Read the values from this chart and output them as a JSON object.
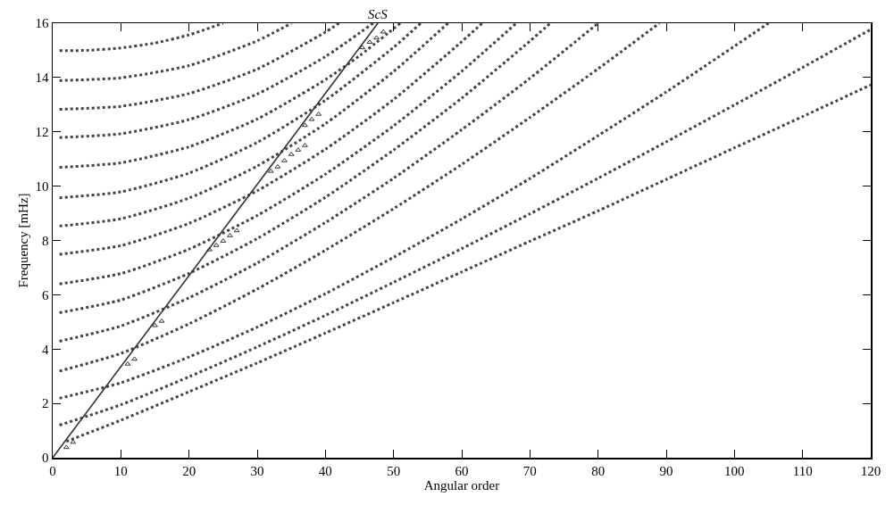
{
  "chart_data": {
    "type": "line",
    "xlabel": "Angular order",
    "ylabel": "Frequency [mHz]",
    "xlim": [
      0,
      120
    ],
    "ylim": [
      0,
      16
    ],
    "xticks": [
      0,
      10,
      20,
      30,
      40,
      50,
      60,
      70,
      80,
      90,
      100,
      110,
      120
    ],
    "yticks": [
      0,
      2,
      4,
      6,
      8,
      10,
      12,
      14,
      16
    ],
    "grid": false,
    "marker": "none",
    "line_style": "dotted",
    "annotations": [
      {
        "text": "ScS",
        "x": 47.7,
        "y": 16
      }
    ],
    "series": [
      {
        "color": "#444444",
        "x": [
          2,
          10,
          20,
          30,
          40,
          50,
          60,
          70,
          80,
          90,
          100,
          110,
          120
        ],
        "values": [
          0.6,
          1.38,
          2.43,
          3.49,
          4.59,
          5.71,
          6.84,
          7.97,
          9.09,
          10.25,
          11.41,
          12.56,
          13.73
        ]
      },
      {
        "color": "#444444",
        "x": [
          1,
          10,
          20,
          30,
          40,
          50,
          60,
          70,
          80,
          90,
          100,
          110,
          120
        ],
        "values": [
          1.2,
          1.95,
          2.98,
          4.08,
          5.24,
          6.46,
          7.7,
          8.98,
          10.29,
          11.63,
          12.99,
          14.37,
          15.77
        ]
      },
      {
        "color": "#444444",
        "x": [
          1,
          10,
          20,
          30,
          40,
          50,
          60,
          70,
          80,
          90,
          105
        ],
        "values": [
          2.19,
          2.76,
          3.71,
          4.81,
          6.04,
          7.38,
          8.79,
          10.28,
          11.86,
          13.47,
          16
        ]
      },
      {
        "color": "#444444",
        "x": [
          1,
          10,
          20,
          30,
          40,
          50,
          60,
          70,
          80,
          89
        ],
        "values": [
          3.19,
          3.84,
          4.93,
          6.21,
          7.64,
          9.17,
          10.8,
          12.53,
          14.32,
          16
        ]
      },
      {
        "color": "#444444",
        "x": [
          1,
          10,
          20,
          30,
          40,
          50,
          60,
          70,
          80
        ],
        "values": [
          4.29,
          4.85,
          5.89,
          7.17,
          8.66,
          10.29,
          12.08,
          13.97,
          16
        ]
      },
      {
        "color": "#444444",
        "x": [
          1,
          10,
          20,
          30,
          40,
          50,
          60,
          70,
          73
        ],
        "values": [
          5.34,
          5.81,
          6.79,
          8.07,
          9.59,
          11.33,
          13.24,
          15.34,
          16
        ]
      },
      {
        "color": "#444444",
        "x": [
          1,
          10,
          20,
          30,
          40,
          50,
          60,
          68
        ],
        "values": [
          6.4,
          6.78,
          7.68,
          8.92,
          10.44,
          12.22,
          14.23,
          16
        ]
      },
      {
        "color": "#444444",
        "x": [
          1,
          10,
          20,
          30,
          40,
          50,
          60,
          63
        ],
        "values": [
          7.49,
          7.81,
          8.63,
          9.83,
          11.36,
          13.19,
          15.32,
          16
        ]
      },
      {
        "color": "#444444",
        "x": [
          1,
          10,
          20,
          30,
          40,
          50,
          58
        ],
        "values": [
          8.53,
          8.8,
          9.56,
          10.74,
          12.3,
          14.22,
          16
        ]
      },
      {
        "color": "#444444",
        "x": [
          1,
          10,
          20,
          30,
          40,
          50,
          54
        ],
        "values": [
          9.57,
          9.79,
          10.48,
          11.61,
          13.16,
          15.11,
          16
        ]
      },
      {
        "color": "#444444",
        "x": [
          1,
          10,
          20,
          30,
          40,
          45,
          51
        ],
        "values": [
          10.69,
          10.86,
          11.45,
          12.47,
          13.92,
          14.8,
          16
        ]
      },
      {
        "color": "#444444",
        "x": [
          1,
          10,
          20,
          30,
          40,
          47
        ],
        "values": [
          11.79,
          11.93,
          12.45,
          13.39,
          14.77,
          16
        ]
      },
      {
        "color": "#444444",
        "x": [
          1,
          10,
          20,
          30,
          40,
          42
        ],
        "values": [
          12.83,
          12.94,
          13.41,
          14.31,
          15.67,
          16
        ]
      },
      {
        "color": "#444444",
        "x": [
          1,
          10,
          20,
          30,
          35
        ],
        "values": [
          13.89,
          13.99,
          14.44,
          15.35,
          16
        ]
      },
      {
        "color": "#444444",
        "x": [
          1,
          5,
          10,
          15,
          20,
          25
        ],
        "values": [
          14.99,
          15.0,
          15.09,
          15.27,
          15.57,
          16
        ]
      },
      {
        "type": "line",
        "line_style": "solid",
        "color": "#333333",
        "x": [
          0,
          47.7
        ],
        "values": [
          0,
          16
        ]
      },
      {
        "type": "scatter",
        "marker": "triangle",
        "color": "#333333",
        "x": [
          2,
          3,
          11,
          12,
          15,
          16,
          23,
          24,
          25,
          26,
          27,
          32,
          33,
          34,
          35,
          36,
          37,
          37,
          38,
          39,
          45.4,
          46.5,
          47.5,
          48.5
        ],
        "values": [
          0.38,
          0.57,
          3.45,
          3.63,
          4.87,
          5.03,
          7.66,
          7.82,
          7.98,
          8.18,
          8.36,
          10.55,
          10.71,
          10.94,
          11.17,
          11.33,
          11.5,
          12.24,
          12.46,
          12.65,
          15.1,
          15.3,
          15.46,
          15.68
        ]
      }
    ]
  }
}
